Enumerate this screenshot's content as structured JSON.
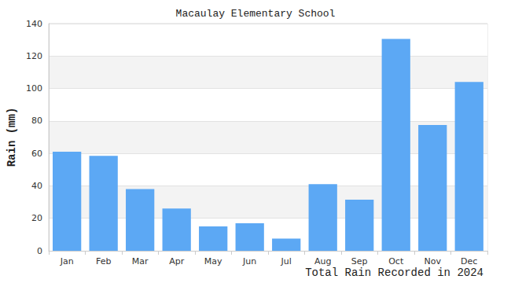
{
  "chart_data": {
    "type": "bar",
    "title": "Macaulay Elementary School",
    "x_label": "Total Rain Recorded in 2024",
    "y_label": "Rain (mm)",
    "categories": [
      "Jan",
      "Feb",
      "Mar",
      "Apr",
      "May",
      "Jun",
      "Jul",
      "Aug",
      "Sep",
      "Oct",
      "Nov",
      "Dec"
    ],
    "values": [
      61,
      58.5,
      38,
      26,
      15,
      17,
      7.5,
      41,
      31.5,
      130.5,
      77.5,
      104
    ],
    "color": "#5ca8f4",
    "ylim": [
      0,
      140
    ],
    "yticks": [
      0,
      20,
      40,
      60,
      80,
      100,
      120,
      140
    ],
    "grid": true
  }
}
